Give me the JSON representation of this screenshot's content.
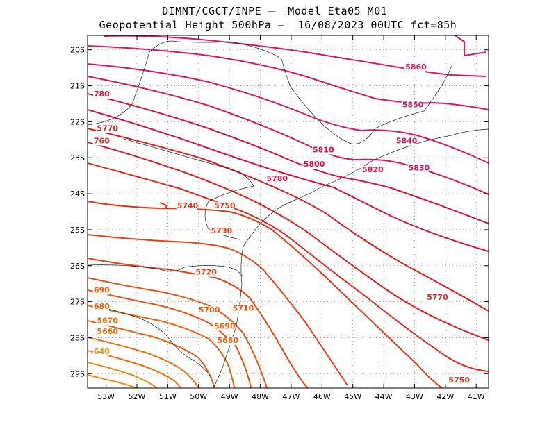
{
  "header": {
    "line1": "DIMNT/CGCT/INPE —  Model Eta05_M01_",
    "line2": "Geopotential Height 500hPa —  16/08/2023 00UTC fct=85h"
  },
  "map": {
    "lon_range": [
      -53.6,
      -40.6
    ],
    "lat_range": [
      -29.4,
      -19.6
    ],
    "lat_ticks": [
      {
        "value": -20,
        "label": "20S"
      },
      {
        "value": -21,
        "label": "21S"
      },
      {
        "value": -22,
        "label": "22S"
      },
      {
        "value": -23,
        "label": "23S"
      },
      {
        "value": -24,
        "label": "24S"
      },
      {
        "value": -25,
        "label": "25S"
      },
      {
        "value": -26,
        "label": "26S"
      },
      {
        "value": -27,
        "label": "27S"
      },
      {
        "value": -28,
        "label": "28S"
      },
      {
        "value": -29,
        "label": "29S"
      }
    ],
    "lon_ticks": [
      {
        "value": -53,
        "label": "53W"
      },
      {
        "value": -52,
        "label": "52W"
      },
      {
        "value": -51,
        "label": "51W"
      },
      {
        "value": -50,
        "label": "50W"
      },
      {
        "value": -49,
        "label": "49W"
      },
      {
        "value": -48,
        "label": "48W"
      },
      {
        "value": -47,
        "label": "47W"
      },
      {
        "value": -46,
        "label": "46W"
      },
      {
        "value": -45,
        "label": "45W"
      },
      {
        "value": -44,
        "label": "44W"
      },
      {
        "value": -43,
        "label": "43W"
      },
      {
        "value": -42,
        "label": "42W"
      },
      {
        "value": -41,
        "label": "41W"
      }
    ],
    "grid": "dotted",
    "contour_labels": [
      {
        "text": "5860",
        "lon": -43.3,
        "lat": -20.55,
        "color": "#e0145a"
      },
      {
        "text": "5850",
        "lon": -43.4,
        "lat": -21.6,
        "color": "#e0145a"
      },
      {
        "text": "5840",
        "lon": -43.6,
        "lat": -22.6,
        "color": "#e0145a"
      },
      {
        "text": "5830",
        "lon": -43.2,
        "lat": -23.35,
        "color": "#e0145a"
      },
      {
        "text": "5820",
        "lon": -44.7,
        "lat": -23.4,
        "color": "#e0103a"
      },
      {
        "text": "5810",
        "lon": -46.3,
        "lat": -22.85,
        "color": "#e0103a"
      },
      {
        "text": "5800",
        "lon": -46.6,
        "lat": -23.25,
        "color": "#e0103a"
      },
      {
        "text": "5780",
        "lon": -47.8,
        "lat": -23.65,
        "color": "#e0103a"
      },
      {
        "text": "5770",
        "lon": -42.6,
        "lat": -26.95,
        "color": "#e8241c"
      },
      {
        "text": "5750",
        "lon": -41.9,
        "lat": -29.25,
        "color": "#ea3414"
      },
      {
        "text": "5750",
        "lon": -49.5,
        "lat": -24.4,
        "color": "#ea3414"
      },
      {
        "text": "5740",
        "lon": -50.7,
        "lat": -24.4,
        "color": "#ea3414"
      },
      {
        "text": "5730",
        "lon": -49.6,
        "lat": -25.1,
        "color": "#ec4010"
      },
      {
        "text": "5720",
        "lon": -50.1,
        "lat": -26.25,
        "color": "#ec4010"
      },
      {
        "text": "5710",
        "lon": -48.9,
        "lat": -27.25,
        "color": "#ee5010"
      },
      {
        "text": "5700",
        "lon": -50.0,
        "lat": -27.3,
        "color": "#ee5010"
      },
      {
        "text": "5690",
        "lon": -49.5,
        "lat": -27.75,
        "color": "#f0600e"
      },
      {
        "text": "5680",
        "lon": -49.4,
        "lat": -28.15,
        "color": "#f0600e"
      },
      {
        "text": "5670",
        "lon": -53.3,
        "lat": -27.6,
        "color": "#f2700c"
      },
      {
        "text": "5660",
        "lon": -53.3,
        "lat": -27.9,
        "color": "#f2700c"
      },
      {
        "text": "690",
        "lon": -53.4,
        "lat": -26.75,
        "color": "#f0600e"
      },
      {
        "text": "680",
        "lon": -53.4,
        "lat": -27.2,
        "color": "#f0600e"
      },
      {
        "text": "640",
        "lon": -53.4,
        "lat": -28.45,
        "color": "#f48a0a"
      },
      {
        "text": "780",
        "lon": -53.4,
        "lat": -21.3,
        "color": "#e0103a"
      },
      {
        "text": "5770",
        "lon": -53.3,
        "lat": -22.25,
        "color": "#e8241c"
      },
      {
        "text": "760",
        "lon": -53.4,
        "lat": -22.6,
        "color": "#e8241c"
      }
    ]
  }
}
